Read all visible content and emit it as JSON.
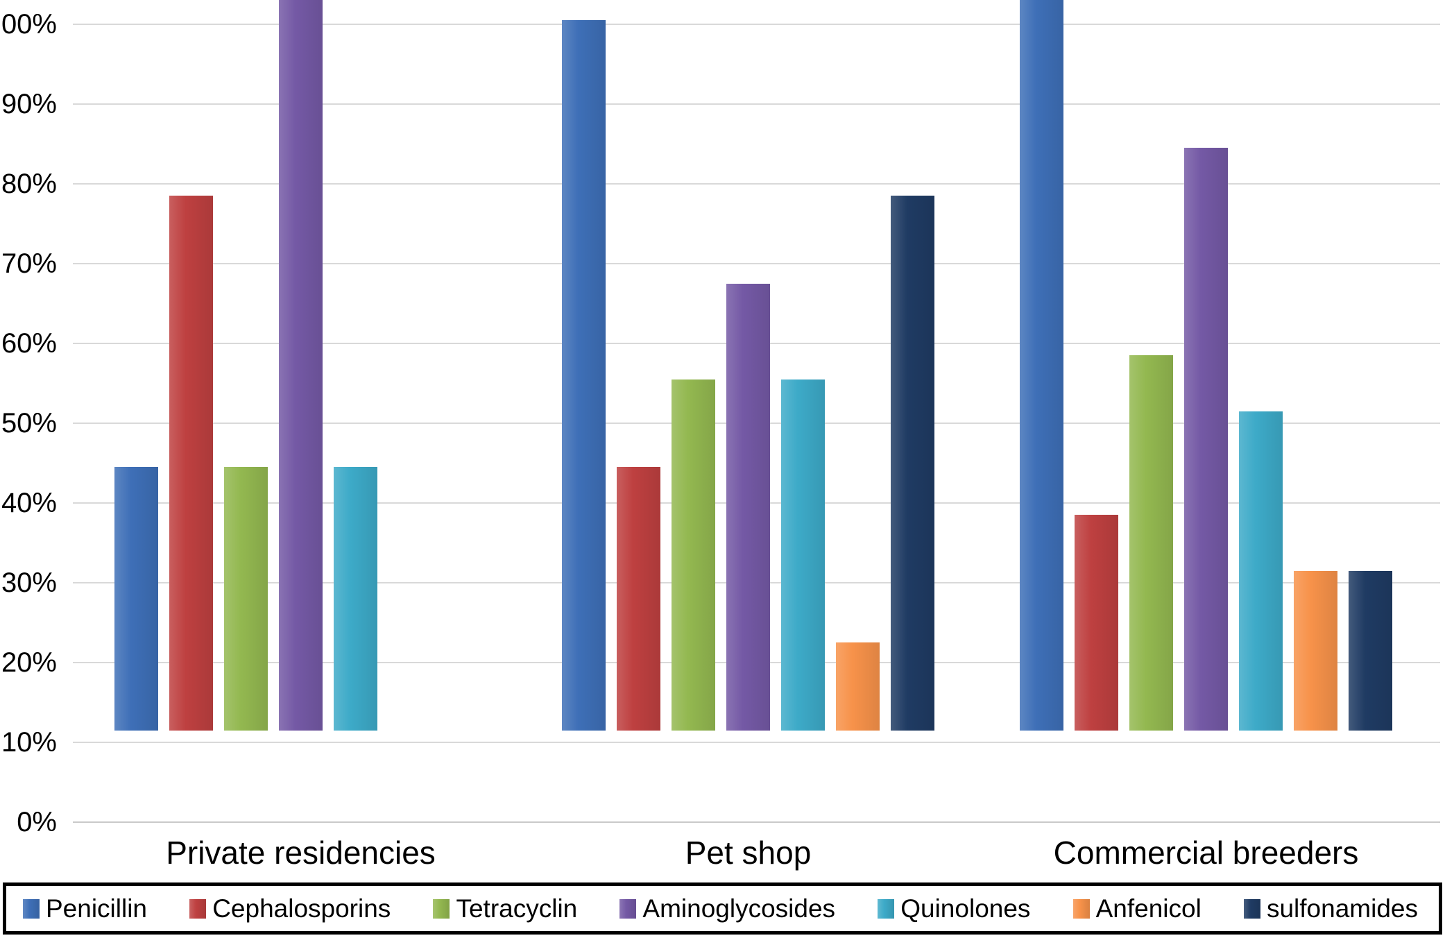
{
  "figure": {
    "background": "#ffffff"
  },
  "chart_data": {
    "type": "bar",
    "title": "",
    "xlabel": "",
    "ylabel": "",
    "categories": [
      "Private residencies",
      "Pet shop",
      "Commercial breeders"
    ],
    "series": [
      {
        "name": "Penicillin",
        "color": "#3E6FB7",
        "values": [
          33,
          89,
          100
        ]
      },
      {
        "name": "Cephalosporins",
        "color": "#BE4040",
        "values": [
          67,
          33,
          27
        ]
      },
      {
        "name": "Tetracyclin",
        "color": "#93B850",
        "values": [
          33,
          44,
          47
        ]
      },
      {
        "name": "Aminoglycosides",
        "color": "#7459A5",
        "values": [
          100,
          56,
          73
        ]
      },
      {
        "name": "Quinolones",
        "color": "#3DAAC8",
        "values": [
          33,
          44,
          40
        ]
      },
      {
        "name": "Anfenicol",
        "color": "#F7924A",
        "values": [
          0,
          11,
          20
        ]
      },
      {
        "name": "sulfonamides",
        "color": "#1F3B63",
        "values": [
          0,
          67,
          20
        ]
      }
    ],
    "y_axis": {
      "min": 0,
      "max": 100,
      "unit": "%",
      "tick_step": 10,
      "tick_labels_as_shown": [
        "00%",
        "90%",
        "80%",
        "70%",
        "60%",
        "50%",
        "40%",
        "30%",
        "20%",
        "10%",
        "0%"
      ]
    },
    "grid": true,
    "gridline_color": "#d9d9d9",
    "legend_position": "bottom",
    "legend_border_color": "#000000"
  }
}
